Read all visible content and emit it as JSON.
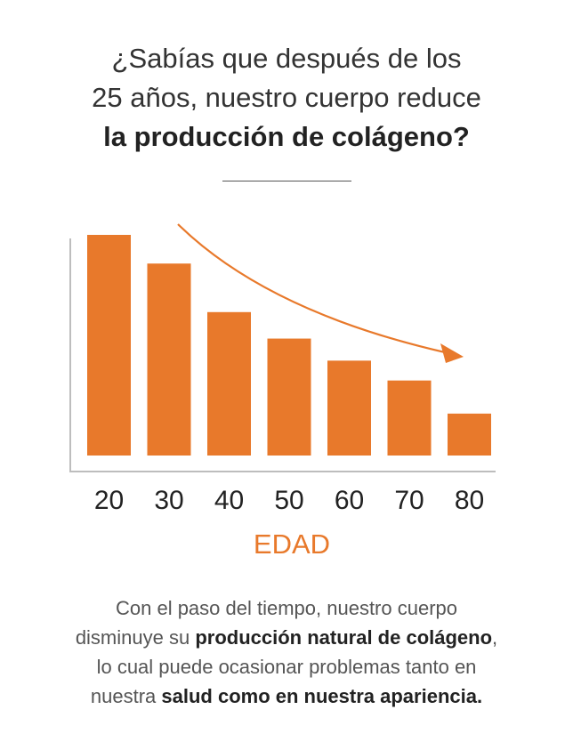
{
  "header": {
    "line1": "¿Sabías que después de los",
    "line2": "25 años, nuestro cuerpo reduce",
    "line3": "la producción de colágeno?"
  },
  "chart_data": {
    "type": "bar",
    "categories": [
      "20",
      "30",
      "40",
      "50",
      "60",
      "70",
      "80"
    ],
    "values": [
      100,
      87,
      65,
      53,
      43,
      34,
      19
    ],
    "ylim": [
      0,
      100
    ],
    "xlabel": "EDAD",
    "ylabel": "",
    "title": "",
    "grid": false,
    "bar_color": "#e8792b",
    "trend_arrow": "decreasing"
  },
  "body": {
    "p1": "Con el paso del tiempo, nuestro cuerpo",
    "p2a": "disminuye su ",
    "p2b": "producción natural de colágeno",
    "p2c": ",",
    "p3": "lo cual puede ocasionar problemas tanto en",
    "p4a": "nuestra ",
    "p4b": "salud como en nuestra apariencia."
  },
  "colors": {
    "accent": "#e8792b",
    "text": "#333333",
    "axis": "#bdbdbd"
  }
}
